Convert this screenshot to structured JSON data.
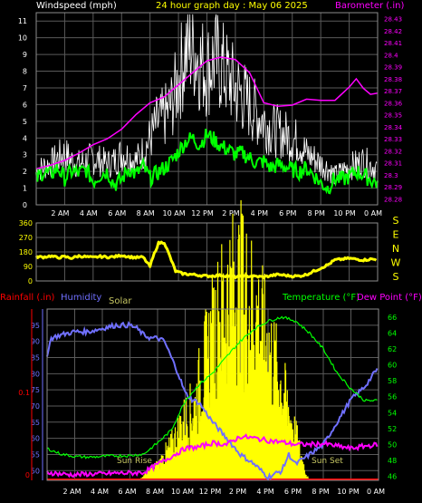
{
  "header": {
    "left_label": "Windspeed (mph)",
    "title": "24 hour graph day : May 06 2025",
    "right_label": "Barometer (.in)"
  },
  "colors": {
    "background": "#000000",
    "grid": "#5a5a5a",
    "windspeed": "#ffffff",
    "wind_avg": "#00ff00",
    "barometer": "#ff00ff",
    "wind_dir": "#ffff00",
    "rain": "#ff0000",
    "humidity": "#7070ff",
    "solar": "#ffff00",
    "temperature": "#00ff00",
    "dewpoint": "#ff00ff",
    "sun_text": "#c8c864",
    "time_label": "#ffffff"
  },
  "time_ticks": [
    "2 AM",
    "4 AM",
    "6 AM",
    "8 AM",
    "10 AM",
    "12 PM",
    "2 PM",
    "4 PM",
    "6 PM",
    "8 PM",
    "10 PM",
    "0 AM"
  ],
  "chart_data": [
    {
      "type": "line",
      "title": "24 hour graph day : May 06 2025",
      "xlabel": "",
      "ylabel": "Windspeed (mph)",
      "y2label": "Barometer (.in)",
      "x_range_hours": [
        0,
        24
      ],
      "ylim": [
        0,
        11.5
      ],
      "y_ticks": [
        0,
        1,
        2,
        3,
        4,
        5,
        6,
        7,
        8,
        9,
        10,
        11
      ],
      "y2lim": [
        28.275,
        28.435
      ],
      "y2_ticks": [
        "28.28",
        "28.29",
        "28.3",
        "28.31",
        "28.32",
        "28.33",
        "28.34",
        "28.35",
        "28.36",
        "28.37",
        "28.38",
        "28.39",
        "28.4",
        "28.41",
        "28.42",
        "28.43"
      ],
      "series": [
        {
          "name": "Windspeed (mph)",
          "x": [
            0,
            0.5,
            1,
            1.5,
            2,
            2.5,
            3,
            3.5,
            4,
            4.5,
            5,
            5.5,
            6,
            6.5,
            7,
            7.5,
            8,
            8.5,
            9,
            9.5,
            10,
            10.5,
            11,
            11.5,
            12,
            12.5,
            13,
            13.5,
            14,
            14.5,
            15,
            15.5,
            16,
            16.5,
            17,
            17.5,
            18,
            18.5,
            19,
            19.5,
            20,
            20.5,
            21,
            21.5,
            22,
            22.5,
            23,
            23.5,
            24
          ],
          "values": [
            2.3,
            2.6,
            2.8,
            3.2,
            3.5,
            3.0,
            2.8,
            3.0,
            3.2,
            3.0,
            2.8,
            3.0,
            3.5,
            3.3,
            3.0,
            3.6,
            4.5,
            5.6,
            6.0,
            6.8,
            8.5,
            10.5,
            11.0,
            9.8,
            9.2,
            10.0,
            9.5,
            8.7,
            8.0,
            7.5,
            6.8,
            6.2,
            5.8,
            5.2,
            5.0,
            4.8,
            4.5,
            4.3,
            3.5,
            3.2,
            2.8,
            2.5,
            2.0,
            2.3,
            2.6,
            2.8,
            3.0,
            2.7,
            2.5
          ]
        },
        {
          "name": "Wind average",
          "x": [
            0,
            0.5,
            1,
            1.5,
            2,
            2.5,
            3,
            3.5,
            4,
            4.5,
            5,
            5.5,
            6,
            6.5,
            7,
            7.5,
            8,
            8.5,
            9,
            9.5,
            10,
            10.5,
            11,
            11.5,
            12,
            12.5,
            13,
            13.5,
            14,
            14.5,
            15,
            15.5,
            16,
            16.5,
            17,
            17.5,
            18,
            18.5,
            19,
            19.5,
            20,
            20.5,
            21,
            21.5,
            22,
            22.5,
            23,
            23.5,
            24
          ],
          "values": [
            1.5,
            2.0,
            1.8,
            2.2,
            1.6,
            2.0,
            1.9,
            2.1,
            1.4,
            1.8,
            2.0,
            1.2,
            1.5,
            2.2,
            1.8,
            2.3,
            1.6,
            1.9,
            2.2,
            2.6,
            3.2,
            3.8,
            4.0,
            3.6,
            4.2,
            3.9,
            3.5,
            3.3,
            3.0,
            3.1,
            2.8,
            2.5,
            2.6,
            2.2,
            2.4,
            2.3,
            2.1,
            2.0,
            2.2,
            1.8,
            1.3,
            1.0,
            1.6,
            1.5,
            1.7,
            2.0,
            1.8,
            1.5,
            1.3
          ]
        },
        {
          "name": "Barometer (.in)",
          "axis": "right",
          "x": [
            0,
            1,
            2,
            3,
            4,
            5,
            6,
            7,
            8,
            9,
            10,
            11,
            12,
            13,
            14,
            15,
            16,
            17,
            18,
            19,
            20,
            21,
            22,
            22.5,
            23,
            23.5,
            24
          ],
          "values": [
            28.305,
            28.308,
            28.312,
            28.318,
            28.325,
            28.33,
            28.338,
            28.35,
            28.36,
            28.365,
            28.375,
            28.385,
            28.395,
            28.398,
            28.396,
            28.385,
            28.36,
            28.357,
            28.358,
            28.363,
            28.362,
            28.362,
            28.373,
            28.38,
            28.372,
            28.367,
            28.368
          ]
        }
      ]
    },
    {
      "type": "line",
      "title": "",
      "ylabel": "",
      "x_range_hours": [
        0,
        24
      ],
      "ylim": [
        0,
        360
      ],
      "y_ticks": [
        0,
        90,
        180,
        270,
        360
      ],
      "right_labels": [
        "S",
        "E",
        "N",
        "W",
        "S"
      ],
      "series": [
        {
          "name": "Wind direction",
          "x": [
            0,
            0.5,
            1,
            1.5,
            2,
            2.5,
            3,
            3.5,
            4,
            4.5,
            5,
            5.5,
            6,
            6.5,
            7,
            7.5,
            8,
            8.3,
            8.6,
            9,
            9.4,
            9.8,
            10.3,
            11,
            12,
            13,
            14,
            15,
            16,
            17,
            18,
            18.5,
            19,
            19.5,
            20,
            20.5,
            21,
            21.5,
            22,
            22.5,
            23,
            23.5,
            24
          ],
          "values": [
            150,
            148,
            155,
            145,
            150,
            142,
            155,
            150,
            145,
            152,
            148,
            150,
            160,
            150,
            145,
            148,
            90,
            170,
            235,
            240,
            150,
            60,
            45,
            40,
            30,
            35,
            25,
            30,
            25,
            40,
            30,
            30,
            40,
            60,
            80,
            100,
            130,
            135,
            140,
            135,
            130,
            135,
            133
          ]
        }
      ]
    },
    {
      "type": "line",
      "title": "",
      "x_range_hours": [
        0,
        24
      ],
      "left_axis_label": "Rainfall (.in)",
      "left_axis2_label": "Humidity",
      "solar_label": "Solar",
      "right_axis_label": "Temperature (°F)",
      "right_axis2_label": "Dew Point (°F)",
      "humidity_ylim": [
        47,
        100
      ],
      "humidity_ticks": [
        50,
        55,
        60,
        65,
        70,
        75,
        80,
        85,
        90,
        95
      ],
      "rain_ticks": [
        "0",
        "0.1"
      ],
      "temp_ylim": [
        45.5,
        67
      ],
      "temp_ticks": [
        46,
        48,
        50,
        52,
        54,
        56,
        58,
        60,
        62,
        64,
        66
      ],
      "sun_rise_label": "Sun Rise",
      "sun_set_label": "Sun Set",
      "series": [
        {
          "name": "Humidity",
          "x": [
            0,
            0.3,
            1,
            2,
            3,
            4,
            5,
            6,
            6.5,
            7,
            7.5,
            8,
            8.5,
            9,
            9.5,
            10,
            10.5,
            11,
            12,
            13,
            14,
            15,
            16,
            17,
            17.5,
            18,
            19,
            20,
            21,
            22,
            23,
            24
          ],
          "values": [
            86,
            91,
            92,
            93,
            93,
            94,
            95,
            95,
            94,
            92,
            91,
            91,
            90,
            85,
            80,
            74,
            72,
            71,
            65,
            60,
            55,
            52,
            48,
            50,
            55,
            52,
            55,
            58,
            65,
            72,
            76,
            82
          ]
        },
        {
          "name": "Temperature (°F)",
          "axis": "right",
          "x": [
            0,
            1,
            2,
            3,
            4,
            5,
            6,
            7,
            8,
            9,
            10,
            11,
            12,
            13,
            14,
            15,
            16,
            17,
            18,
            19,
            20,
            21,
            22,
            23,
            24
          ],
          "values": [
            49.5,
            48.8,
            48.5,
            48.4,
            48.5,
            48.6,
            48.6,
            48.8,
            50.2,
            51.8,
            55.5,
            57.5,
            59,
            61,
            63,
            64.5,
            65.5,
            66,
            65.5,
            64,
            62,
            59,
            57,
            55.5,
            55.5
          ]
        },
        {
          "name": "Dew Point (°F)",
          "axis": "right",
          "x": [
            0,
            1,
            2,
            3,
            4,
            5,
            6,
            7,
            8,
            9,
            10,
            11,
            12,
            13,
            14,
            15,
            16,
            17,
            18,
            19,
            20,
            21,
            22,
            23,
            24
          ],
          "values": [
            46.5,
            46.3,
            46.2,
            46.3,
            46.3,
            46.4,
            46.4,
            46.5,
            47.5,
            48.5,
            49.5,
            49.7,
            50.2,
            50,
            51,
            50.8,
            50.5,
            50.3,
            50,
            50,
            50.1,
            49.8,
            49.5,
            49.8,
            50
          ]
        },
        {
          "name": "Solar",
          "x": [
            0,
            6.7,
            7,
            8,
            9,
            10,
            10.7,
            11,
            12,
            13,
            14,
            15,
            16,
            17,
            18,
            18.5,
            18.8,
            19,
            24
          ],
          "values": [
            0,
            0,
            2,
            6,
            14,
            25,
            30,
            38,
            60,
            75,
            80,
            70,
            55,
            38,
            18,
            8,
            2,
            0,
            0
          ]
        }
      ]
    }
  ]
}
